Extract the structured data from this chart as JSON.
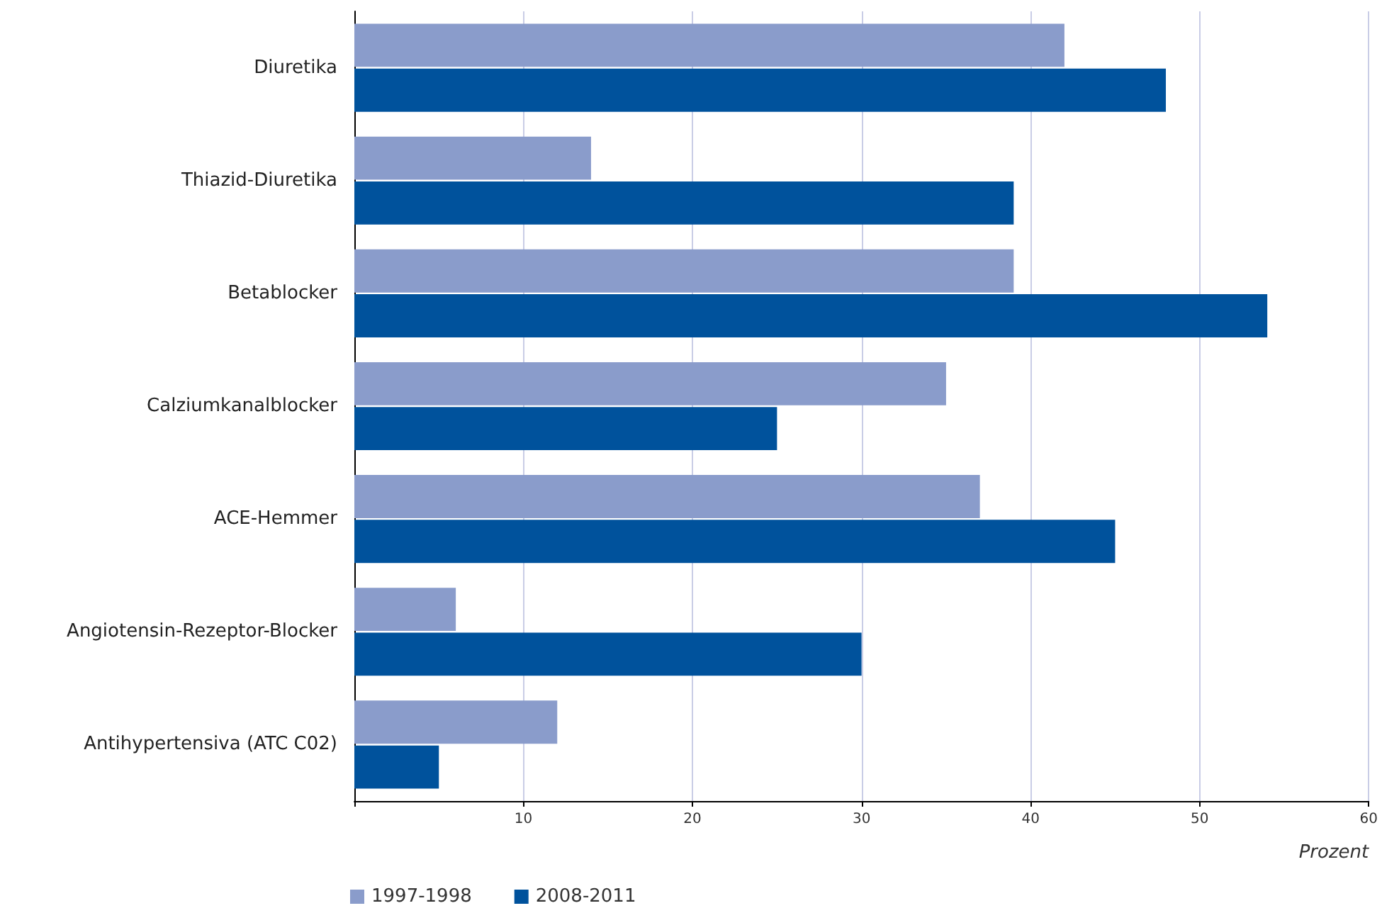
{
  "chart_data": {
    "type": "bar",
    "orientation": "horizontal",
    "xlabel": "Prozent",
    "categories": [
      "Diuretika",
      "Thiazid-Diuretika",
      "Betablocker",
      "Calziumkanalblocker",
      "ACE-Hemmer",
      "Angiotensin-Rezeptor-Blocker",
      "Antihypertensiva (ATC C02)"
    ],
    "series": [
      {
        "name": "1997-1998",
        "color": "#8a9ccb",
        "values": [
          42,
          14,
          39,
          35,
          37,
          6,
          12
        ]
      },
      {
        "name": "2008-2011",
        "color": "#00529c",
        "values": [
          48,
          39,
          54,
          25,
          45,
          30,
          5
        ]
      }
    ],
    "xlim": [
      0,
      60
    ],
    "xticks": [
      {
        "value": 0,
        "label": null
      },
      10,
      20,
      30,
      40,
      50,
      60
    ],
    "grid": "x",
    "legend": "bottom left"
  }
}
